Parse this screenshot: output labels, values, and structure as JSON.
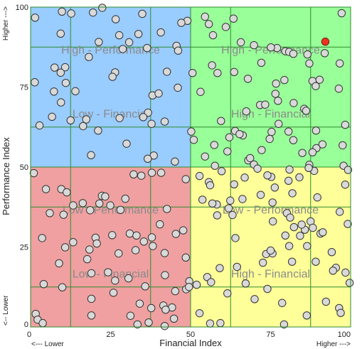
{
  "chart_data": {
    "type": "scatter",
    "xlabel": "Financial Index",
    "ylabel": "Performance Index",
    "xlim": [
      0,
      100
    ],
    "ylim": [
      0,
      100
    ],
    "x_ticks": [
      "0",
      "25",
      "50",
      "75",
      "100"
    ],
    "y_ticks": [
      "0",
      "25",
      "50",
      "75",
      "100"
    ],
    "x_edge_labels": {
      "low": "<--- Lower",
      "high": "Higher --->"
    },
    "y_edge_labels": {
      "low": "<-- Lower",
      "high": "Higher --->"
    },
    "grid": true,
    "minor_gridlines": [
      12.5,
      37.5,
      62.5,
      87.5
    ],
    "colors": {
      "top_left": "#99ccff",
      "top_right": "#99ff99",
      "bottom_left": "#f0a0a0",
      "bottom_right": "#ffff99",
      "grid": "#2e8b2e",
      "point_fill": "#d9d9d9",
      "point_stroke": "#333333",
      "highlight_point": "#ee3322",
      "quadrant_text": "#8a8a8a"
    },
    "quadrant_labels": [
      {
        "quadrant": "top-left",
        "line1": "High - Performance",
        "line2": "Low - Financial"
      },
      {
        "quadrant": "top-right",
        "line1": "High - Performance",
        "line2": "High - Financial"
      },
      {
        "quadrant": "bottom-left",
        "line1": "Low - Performance",
        "line2": "Low - Financial"
      },
      {
        "quadrant": "bottom-right",
        "line1": "Low - Performance",
        "line2": "High - Financial"
      }
    ],
    "highlight": {
      "x": 92.1,
      "y": 89.2
    },
    "points": [
      [
        22.4,
        99.8
      ],
      [
        9.8,
        98.6
      ],
      [
        12.7,
        98.0
      ],
      [
        19.5,
        98.3
      ],
      [
        34.9,
        97.9
      ],
      [
        54.5,
        97.0
      ],
      [
        1.4,
        96.7
      ],
      [
        26.6,
        96.2
      ],
      [
        49.0,
        95.7
      ],
      [
        47.1,
        95.1
      ],
      [
        63.4,
        96.4
      ],
      [
        55.7,
        94.7
      ],
      [
        40.7,
        92.1
      ],
      [
        33.7,
        91.6
      ],
      [
        9.4,
        91.7
      ],
      [
        27.7,
        91.2
      ],
      [
        61.0,
        93.8
      ],
      [
        65.7,
        89.0
      ],
      [
        57.0,
        91.2
      ],
      [
        97.2,
        98.1
      ],
      [
        21.3,
        89.1
      ],
      [
        30.8,
        89.0
      ],
      [
        45.6,
        87.9
      ],
      [
        36.4,
        87.2
      ],
      [
        28.8,
        86.9
      ],
      [
        46.1,
        86.4
      ],
      [
        77.0,
        87.2
      ],
      [
        69.8,
        88.1
      ],
      [
        75.1,
        87.4
      ],
      [
        79.6,
        86.2
      ],
      [
        80.8,
        86.0
      ],
      [
        82.1,
        85.4
      ],
      [
        86.5,
        85.2
      ],
      [
        91.9,
        85.6
      ],
      [
        18.2,
        84.4
      ],
      [
        7.5,
        81.1
      ],
      [
        10.8,
        81.2
      ],
      [
        9.4,
        79.5
      ],
      [
        26.4,
        79.6
      ],
      [
        25.6,
        78.2
      ],
      [
        42.6,
        79.8
      ],
      [
        50.6,
        79.4
      ],
      [
        72.1,
        82.6
      ],
      [
        87.1,
        82.4
      ],
      [
        96.6,
        82.4
      ],
      [
        56.7,
        81.8
      ],
      [
        1.3,
        76.5
      ],
      [
        11.0,
        76.3
      ],
      [
        58.4,
        79.4
      ],
      [
        63.6,
        79.7
      ],
      [
        67.9,
        77.6
      ],
      [
        76.7,
        76.1
      ],
      [
        79.3,
        77.2
      ],
      [
        88.1,
        76.9
      ],
      [
        90.3,
        77.3
      ],
      [
        7.3,
        73.6
      ],
      [
        14.0,
        73.7
      ],
      [
        38.1,
        72.4
      ],
      [
        40.0,
        73.0
      ],
      [
        46.0,
        74.8
      ],
      [
        89.1,
        75.3
      ],
      [
        96.3,
        74.5
      ],
      [
        53.1,
        73.5
      ],
      [
        9.5,
        70.2
      ],
      [
        76.5,
        72.9
      ],
      [
        77.3,
        70.7
      ],
      [
        82.2,
        70.0
      ],
      [
        85.5,
        68.2
      ],
      [
        86.1,
        67.6
      ],
      [
        71.7,
        69.4
      ],
      [
        73.3,
        69.5
      ],
      [
        67.4,
        67.4
      ],
      [
        36.7,
        67.0
      ],
      [
        6.7,
        65.7
      ],
      [
        12.5,
        64.6
      ],
      [
        17.4,
        64.9
      ],
      [
        27.8,
        65.3
      ],
      [
        35.2,
        65.6
      ],
      [
        37.8,
        63.5
      ],
      [
        41.9,
        64.2
      ],
      [
        16.4,
        62.8
      ],
      [
        21.1,
        61.4
      ],
      [
        59.5,
        64.4
      ],
      [
        77.5,
        63.5
      ],
      [
        98.3,
        63.2
      ],
      [
        89.2,
        61.4
      ],
      [
        75.3,
        61.0
      ],
      [
        66.3,
        59.9
      ],
      [
        74.7,
        58.8
      ],
      [
        80.6,
        61.1
      ],
      [
        63.9,
        61.3
      ],
      [
        65.3,
        60.3
      ],
      [
        62.1,
        59.3
      ],
      [
        50.2,
        61.1
      ],
      [
        91.2,
        57.1
      ],
      [
        51.0,
        58.5
      ],
      [
        2.8,
        63.0
      ],
      [
        30.0,
        57.3
      ],
      [
        57.4,
        56.9
      ],
      [
        82.1,
        58.4
      ],
      [
        89.3,
        55.9
      ],
      [
        97.5,
        56.8
      ],
      [
        84.9,
        54.4
      ],
      [
        54.5,
        53.3
      ],
      [
        18.9,
        53.7
      ],
      [
        61.5,
        54.9
      ],
      [
        72.2,
        55.3
      ],
      [
        38.5,
        53.6
      ],
      [
        88.1,
        54.6
      ],
      [
        36.6,
        52.6
      ],
      [
        45.1,
        51.7
      ],
      [
        57.6,
        50.4
      ],
      [
        87.1,
        50.7
      ],
      [
        97.8,
        50.4
      ],
      [
        88.6,
        48.8
      ],
      [
        68.0,
        52.1
      ],
      [
        68.6,
        52.8
      ],
      [
        69.8,
        50.8
      ],
      [
        70.9,
        49.5
      ],
      [
        52.8,
        47.2
      ],
      [
        80.9,
        49.2
      ],
      [
        86.9,
        49.7
      ],
      [
        84.0,
        46.8
      ],
      [
        48.5,
        46.2
      ],
      [
        34.6,
        47.3
      ],
      [
        32.2,
        47.7
      ],
      [
        37.9,
        48.2
      ],
      [
        99.2,
        49.1
      ],
      [
        75.2,
        46.9
      ],
      [
        40.8,
        48.2
      ],
      [
        66.9,
        46.7
      ],
      [
        55.7,
        45.3
      ],
      [
        63.6,
        44.6
      ],
      [
        74.0,
        47.4
      ],
      [
        59.7,
        48.7
      ],
      [
        56.1,
        44.3
      ],
      [
        4.8,
        43.1
      ],
      [
        9.6,
        43.1
      ],
      [
        11.3,
        42.1
      ],
      [
        22.3,
        41.0
      ],
      [
        29.6,
        40.1
      ],
      [
        76.3,
        43.6
      ],
      [
        80.6,
        45.7
      ],
      [
        1.0,
        48.1
      ],
      [
        21.5,
        38.6
      ],
      [
        23.3,
        40.8
      ],
      [
        13.3,
        38.0
      ],
      [
        16.3,
        38.7
      ],
      [
        71.9,
        41.3
      ],
      [
        81.8,
        41.8
      ],
      [
        89.6,
        40.5
      ],
      [
        24.9,
        38.0
      ],
      [
        58.2,
        38.3
      ],
      [
        66.2,
        40.0
      ],
      [
        62.4,
        39.5
      ],
      [
        75.6,
        38.9
      ],
      [
        98.3,
        44.5
      ],
      [
        10.3,
        35.1
      ],
      [
        6.0,
        35.6
      ],
      [
        18.6,
        36.5
      ],
      [
        28.1,
        36.6
      ],
      [
        42.6,
        36.9
      ],
      [
        53.7,
        39.8
      ],
      [
        56.8,
        38.6
      ],
      [
        58.3,
        34.9
      ],
      [
        63.1,
        35.0
      ],
      [
        61.9,
        37.1
      ],
      [
        96.6,
        36.0
      ],
      [
        80.1,
        35.6
      ],
      [
        81.1,
        34.2
      ],
      [
        87.5,
        33.0
      ],
      [
        75.7,
        33.0
      ],
      [
        40.4,
        32.1
      ],
      [
        47.7,
        30.2
      ],
      [
        85.7,
        30.4
      ],
      [
        84.2,
        28.5
      ],
      [
        82.3,
        31.2
      ],
      [
        84.7,
        32.0
      ],
      [
        88.2,
        31.0
      ],
      [
        90.6,
        29.2
      ],
      [
        99.1,
        32.2
      ],
      [
        31.0,
        29.2
      ],
      [
        33.1,
        28.6
      ],
      [
        25.5,
        28.7
      ],
      [
        45.4,
        29.1
      ],
      [
        79.6,
        28.6
      ],
      [
        91.3,
        29.6
      ],
      [
        3.6,
        27.8
      ],
      [
        20.3,
        27.9
      ],
      [
        35.4,
        26.7
      ],
      [
        13.3,
        26.5
      ],
      [
        37.9,
        28.0
      ],
      [
        18.4,
        24.2
      ],
      [
        32.8,
        24.0
      ],
      [
        10.8,
        24.9
      ],
      [
        20.7,
        26.1
      ],
      [
        38.2,
        25.3
      ],
      [
        64.0,
        27.8
      ],
      [
        80.8,
        25.3
      ],
      [
        86.4,
        25.3
      ],
      [
        75.6,
        23.0
      ],
      [
        73.6,
        22.8
      ],
      [
        27.5,
        23.0
      ],
      [
        41.9,
        23.1
      ],
      [
        75.0,
        23.9
      ],
      [
        94.1,
        23.4
      ],
      [
        17.7,
        21.2
      ],
      [
        48.5,
        21.7
      ],
      [
        8.9,
        19.9
      ],
      [
        19.0,
        16.8
      ],
      [
        72.6,
        20.1
      ],
      [
        81.7,
        20.4
      ],
      [
        89.1,
        20.4
      ],
      [
        59.1,
        18.4
      ],
      [
        64.5,
        18.8
      ],
      [
        98.4,
        17.0
      ],
      [
        24.2,
        17.1
      ],
      [
        95.4,
        18.5
      ],
      [
        94.5,
        17.6
      ],
      [
        30.6,
        15.2
      ],
      [
        49.6,
        14.3
      ],
      [
        55.2,
        15.6
      ],
      [
        51.9,
        13.2
      ],
      [
        99.7,
        13.8
      ],
      [
        4.1,
        13.4
      ],
      [
        26.4,
        14.5
      ],
      [
        42.0,
        16.2
      ],
      [
        56.4,
        14.0
      ],
      [
        67.2,
        13.6
      ],
      [
        74.0,
        11.9
      ],
      [
        35.8,
        12.7
      ],
      [
        9.9,
        12.4
      ],
      [
        25.9,
        10.7
      ],
      [
        48.6,
        11.8
      ],
      [
        45.2,
        11.2
      ],
      [
        49.5,
        12.5
      ],
      [
        61.5,
        10.5
      ],
      [
        70.0,
        8.7
      ],
      [
        78.6,
        7.5
      ],
      [
        19.0,
        8.8
      ],
      [
        34.1,
        7.3
      ],
      [
        41.5,
        6.7
      ],
      [
        44.2,
        6.1
      ],
      [
        92.3,
        7.9
      ],
      [
        1.6,
        4.1
      ],
      [
        52.8,
        4.3
      ],
      [
        86.3,
        3.6
      ],
      [
        96.4,
        5.9
      ],
      [
        31.2,
        3.5
      ],
      [
        2.2,
        2.3
      ],
      [
        42.2,
        5.4
      ],
      [
        56.1,
        1.1
      ],
      [
        19.0,
        3.6
      ],
      [
        37.7,
        5.9
      ],
      [
        96.9,
        4.4
      ],
      [
        33.4,
        0.8
      ],
      [
        44.8,
        2.6
      ],
      [
        3.8,
        1.2
      ],
      [
        59.3,
        1.2
      ],
      [
        79.2,
        0.8
      ],
      [
        36.9,
        1.4
      ],
      [
        41.9,
        0.3
      ]
    ]
  }
}
